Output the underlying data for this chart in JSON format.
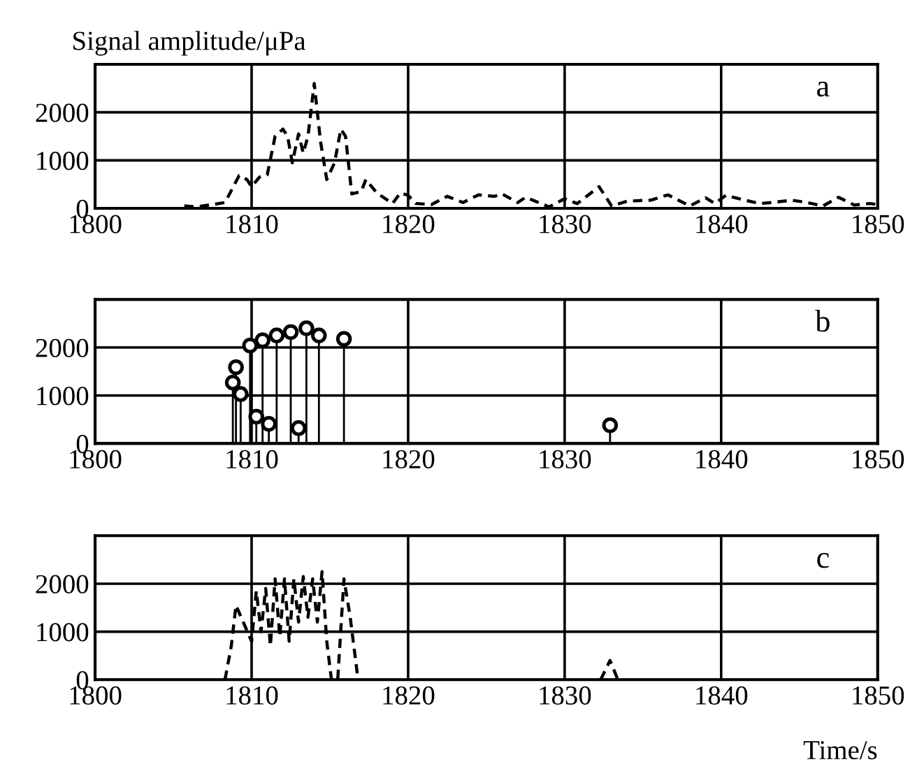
{
  "chart_data": [
    {
      "type": "line",
      "ylabel": "Signal amplitude/μPa",
      "annotations": [
        "a"
      ],
      "line_style": "dashed",
      "grid": true,
      "xlim": [
        1800,
        1850
      ],
      "ylim": [
        0,
        3000
      ],
      "xticks": [
        1800,
        1810,
        1820,
        1830,
        1840,
        1850
      ],
      "yticks": [
        0,
        1000,
        2000
      ],
      "color": "#000000",
      "x": [
        1805.7,
        1806.5,
        1807.5,
        1808.3,
        1809.2,
        1809.7,
        1810,
        1810.5,
        1811,
        1811.5,
        1812,
        1812.3,
        1812.6,
        1813,
        1813.3,
        1813.6,
        1814,
        1814.4,
        1814.8,
        1815.3,
        1815.7,
        1816,
        1816.4,
        1817,
        1817.3,
        1818,
        1819,
        1819.5,
        1820,
        1820.5,
        1821.5,
        1822.5,
        1823.5,
        1824.5,
        1825.5,
        1826,
        1827,
        1827.5,
        1828.5,
        1829,
        1830,
        1830.8,
        1832.2,
        1833,
        1834,
        1835.5,
        1836.6,
        1837.5,
        1838,
        1839,
        1839.6,
        1840.3,
        1841.5,
        1842.5,
        1843.5,
        1844.5,
        1845.5,
        1846.5,
        1847.5,
        1848.5,
        1849.5,
        1850
      ],
      "values": [
        50,
        30,
        80,
        120,
        680,
        600,
        450,
        650,
        700,
        1500,
        1650,
        1500,
        950,
        1550,
        1150,
        1500,
        2600,
        1400,
        600,
        950,
        1650,
        1500,
        300,
        350,
        600,
        320,
        100,
        320,
        270,
        100,
        80,
        250,
        120,
        280,
        250,
        300,
        120,
        230,
        100,
        30,
        200,
        100,
        450,
        50,
        150,
        170,
        280,
        130,
        50,
        220,
        100,
        270,
        170,
        100,
        130,
        170,
        120,
        50,
        230,
        70,
        100,
        80
      ]
    },
    {
      "type": "lollipop",
      "annotations": [
        "b"
      ],
      "marker": "circle",
      "grid": true,
      "xlim": [
        1800,
        1850
      ],
      "ylim": [
        0,
        3000
      ],
      "xticks": [
        1800,
        1810,
        1820,
        1830,
        1840,
        1850
      ],
      "yticks": [
        0,
        1000,
        2000
      ],
      "color": "#000000",
      "x": [
        1808.8,
        1809.0,
        1809.3,
        1809.9,
        1810.3,
        1810.7,
        1811.1,
        1811.6,
        1812.5,
        1813.0,
        1813.5,
        1814.3,
        1815.9,
        1832.9
      ],
      "values": [
        1270,
        1590,
        1030,
        2040,
        560,
        2150,
        410,
        2250,
        2320,
        320,
        2400,
        2250,
        2180,
        380
      ]
    },
    {
      "type": "line",
      "xlabel": "Time/s",
      "annotations": [
        "c"
      ],
      "line_style": "dashed",
      "grid": true,
      "xlim": [
        1800,
        1850
      ],
      "ylim": [
        0,
        3000
      ],
      "xticks": [
        1800,
        1810,
        1820,
        1830,
        1840,
        1850
      ],
      "yticks": [
        0,
        1000,
        2000
      ],
      "color": "#000000",
      "x": [
        1808.3,
        1808.7,
        1809,
        1809.6,
        1810,
        1810.3,
        1810.6,
        1810.9,
        1811.2,
        1811.5,
        1811.8,
        1812.1,
        1812.4,
        1812.7,
        1813,
        1813.3,
        1813.6,
        1813.9,
        1814.2,
        1814.5,
        1814.8,
        1815.1,
        1815.5,
        1815.9,
        1816.3,
        1816.8,
        1824,
        1832.3,
        1832.9,
        1833.4
      ],
      "values": [
        0,
        700,
        1550,
        1100,
        800,
        1850,
        1000,
        1900,
        700,
        2100,
        900,
        2100,
        800,
        2100,
        1200,
        2150,
        1300,
        2100,
        1200,
        2250,
        800,
        0,
        0,
        2100,
        1300,
        0,
        null,
        0,
        400,
        0
      ]
    }
  ]
}
